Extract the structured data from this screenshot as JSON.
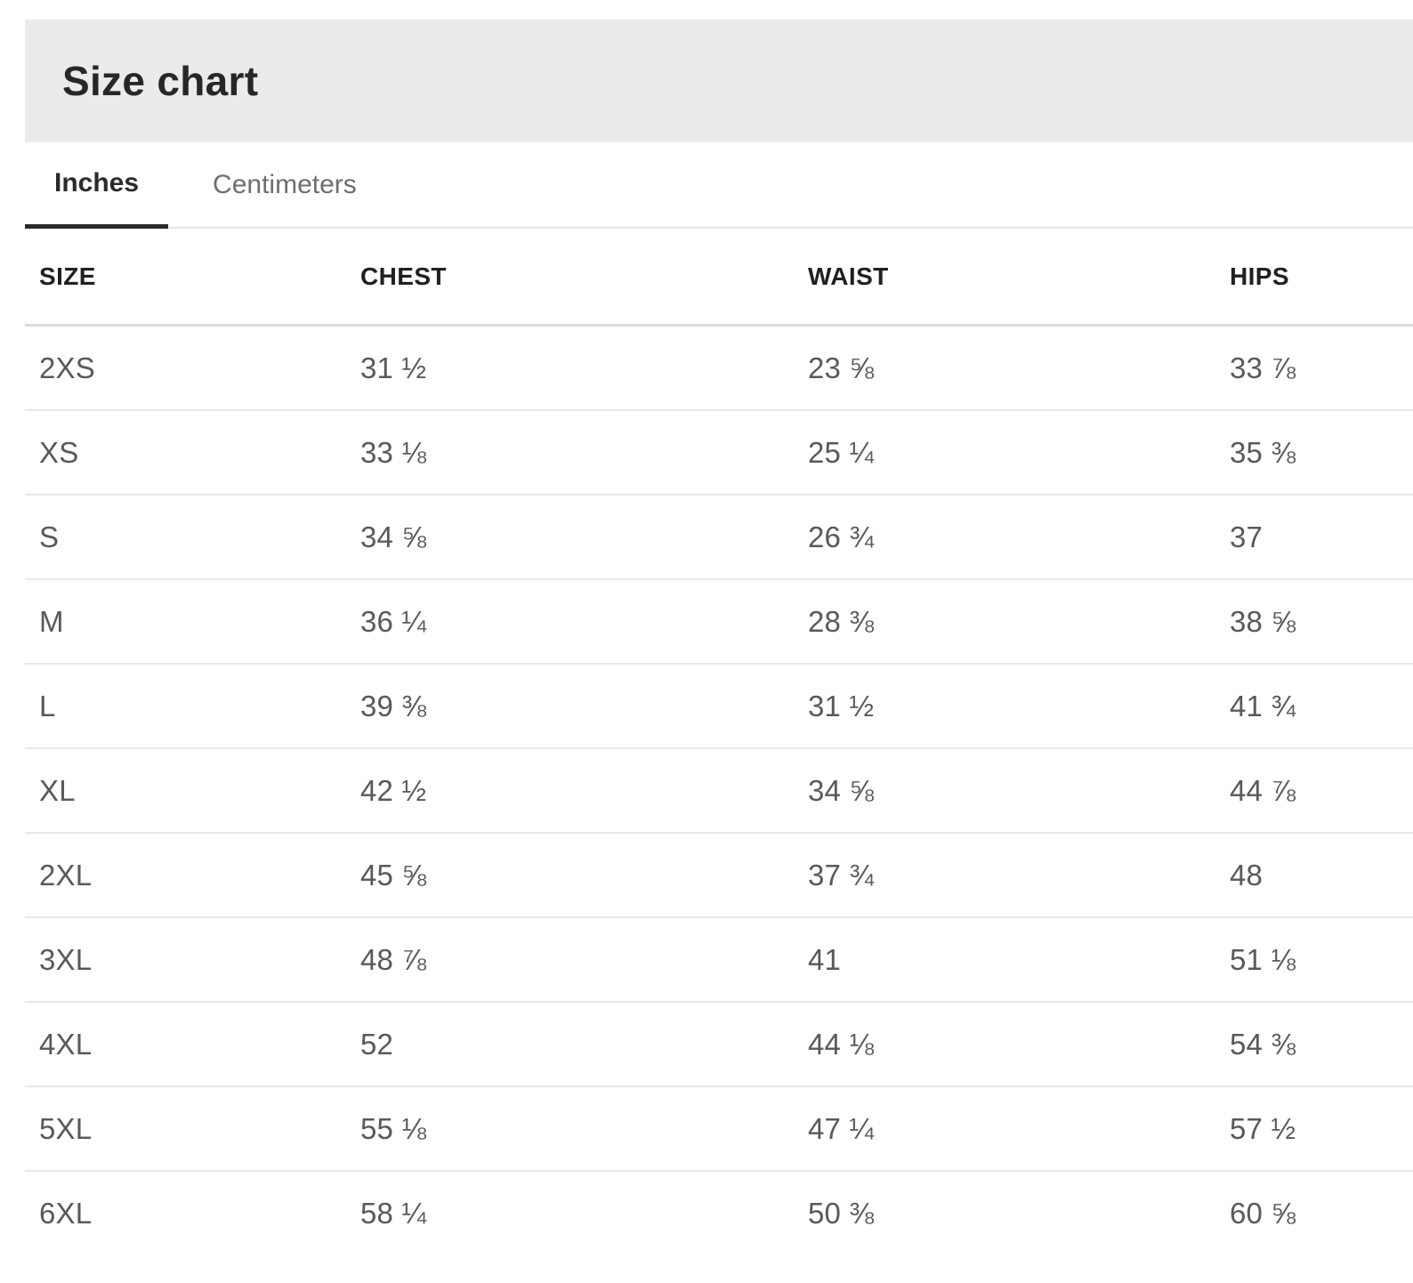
{
  "header": {
    "title": "Size chart"
  },
  "tabs": [
    {
      "label": "Inches",
      "active": true
    },
    {
      "label": "Centimeters",
      "active": false
    }
  ],
  "active_tab": "Inches",
  "colors": {
    "header_band": "#ebebeb",
    "active_underline": "#2b2b2b",
    "divider": "#e8e8e8"
  },
  "table": {
    "columns": [
      "SIZE",
      "CHEST",
      "WAIST",
      "HIPS"
    ],
    "unit": "inches",
    "rows": [
      {
        "size": "2XS",
        "chest": "31 ½",
        "waist": "23 ⅝",
        "hips": "33 ⅞"
      },
      {
        "size": "XS",
        "chest": "33 ⅛",
        "waist": "25 ¼",
        "hips": "35 ⅜"
      },
      {
        "size": "S",
        "chest": "34 ⅝",
        "waist": "26 ¾",
        "hips": "37"
      },
      {
        "size": "M",
        "chest": "36 ¼",
        "waist": "28 ⅜",
        "hips": "38 ⅝"
      },
      {
        "size": "L",
        "chest": "39 ⅜",
        "waist": "31 ½",
        "hips": "41 ¾"
      },
      {
        "size": "XL",
        "chest": "42 ½",
        "waist": "34 ⅝",
        "hips": "44 ⅞"
      },
      {
        "size": "2XL",
        "chest": "45 ⅝",
        "waist": "37 ¾",
        "hips": "48"
      },
      {
        "size": "3XL",
        "chest": "48 ⅞",
        "waist": "41",
        "hips": "51 ⅛"
      },
      {
        "size": "4XL",
        "chest": "52",
        "waist": "44 ⅛",
        "hips": "54 ⅜"
      },
      {
        "size": "5XL",
        "chest": "55 ⅛",
        "waist": "47 ¼",
        "hips": "57 ½"
      },
      {
        "size": "6XL",
        "chest": "58 ¼",
        "waist": "50 ⅜",
        "hips": "60 ⅝"
      }
    ]
  }
}
